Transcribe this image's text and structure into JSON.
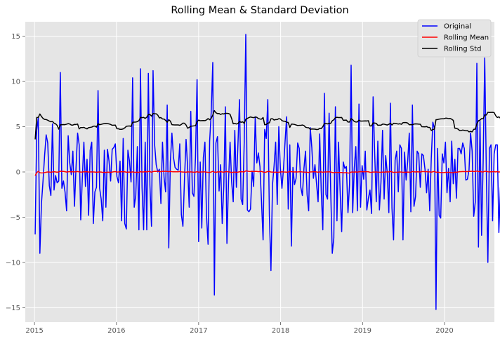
{
  "chart_data": {
    "type": "line",
    "title": "Rolling Mean & Standard Deviation",
    "xlabel": "",
    "ylabel": "",
    "x_axis": "date",
    "xlim": [
      "2014-11-21",
      "2020-08-10"
    ],
    "ylim": [
      -16.6,
      16.6
    ],
    "x_ticks": [
      "2015-01-01",
      "2016-01-01",
      "2017-01-01",
      "2018-01-01",
      "2019-01-01",
      "2020-01-01"
    ],
    "x_tick_labels": [
      "2015",
      "2016",
      "2017",
      "2018",
      "2019",
      "2020"
    ],
    "y_ticks": [
      -15,
      -10,
      -5,
      0,
      5,
      10,
      15
    ],
    "y_tick_labels": [
      "−15",
      "−10",
      "−5",
      "0",
      "5",
      "10",
      "15"
    ],
    "grid": true,
    "legend_position": "top-right",
    "start_date": "2015-01-04",
    "frequency": "weekly",
    "series": [
      {
        "name": "Original",
        "color": "#0000ff",
        "values": [
          -6.9,
          4.6,
          6.0,
          -9.0,
          -3.5,
          -1.0,
          1.8,
          4.1,
          3.2,
          -1.5,
          -2.6,
          5.3,
          -2.0,
          -0.4,
          -1.2,
          -1.0,
          11.0,
          -1.8,
          -1.0,
          -2.2,
          -4.3,
          4.0,
          1.0,
          -0.3,
          2.3,
          -3.8,
          0.5,
          4.3,
          3.0,
          -5.3,
          -0.7,
          3.3,
          -1.6,
          1.4,
          -4.8,
          2.4,
          3.3,
          -5.7,
          -2.2,
          -1.7,
          9.0,
          -1.8,
          -3.0,
          -5.4,
          2.4,
          -3.9,
          2.5,
          1.2,
          -1.0,
          2.5,
          2.7,
          3.1,
          -0.5,
          -1.2,
          1.2,
          -5.4,
          3.7,
          -5.7,
          -6.3,
          2.4,
          1.2,
          -1.1,
          10.4,
          -3.9,
          -2.6,
          2.8,
          -6.4,
          11.4,
          -1.7,
          -6.4,
          3.3,
          -6.4,
          10.9,
          -1.4,
          -6.0,
          11.2,
          3.0,
          0.8,
          0.0,
          0.3,
          -3.5,
          3.3,
          -0.6,
          -2.2,
          7.4,
          -8.4,
          1.1,
          4.3,
          1.6,
          0.5,
          0.3,
          0.2,
          3.1,
          -4.7,
          -6.0,
          -0.8,
          3.6,
          0.5,
          -3.9,
          6.7,
          -2.3,
          -2.7,
          1.7,
          10.2,
          -7.7,
          1.1,
          -6.2,
          1.6,
          3.3,
          -4.8,
          -8.0,
          3.4,
          6.6,
          12.1,
          -13.6,
          3.2,
          3.9,
          -2.1,
          0.8,
          -5.7,
          -1.6,
          7.2,
          -7.9,
          -1.1,
          3.3,
          -1.1,
          -3.3,
          4.6,
          -1.7,
          3.0,
          8.0,
          -3.0,
          -3.6,
          3.3,
          15.2,
          -4.2,
          -4.4,
          -4.1,
          0.1,
          -1.6,
          6.1,
          1.0,
          2.1,
          0.6,
          -3.3,
          -7.5,
          4.7,
          3.7,
          8.0,
          -4.8,
          -10.9,
          -1.4,
          0.7,
          3.3,
          -3.6,
          5.0,
          0.4,
          -1.8,
          0.4,
          3.4,
          6.1,
          -4.1,
          3.0,
          -8.2,
          0.5,
          -1.4,
          -0.7,
          3.2,
          2.6,
          -1.7,
          -2.6,
          0.4,
          2.3,
          -2.5,
          -4.3,
          4.9,
          2.7,
          -0.7,
          0.8,
          -1.3,
          -3.3,
          4.2,
          -2.1,
          -6.4,
          8.7,
          -2.5,
          -3.0,
          6.5,
          -2.0,
          -9.0,
          -7.3,
          7.2,
          -5.4,
          3.3,
          -2.1,
          -6.6,
          1.1,
          0.4,
          0.6,
          -4.5,
          -1.4,
          11.8,
          -4.5,
          0.4,
          2.8,
          -4.3,
          7.5,
          -3.9,
          0.7,
          -0.8,
          2.3,
          -4.2,
          -2.9,
          -2.0,
          -4.6,
          8.3,
          2.0,
          -3.3,
          3.4,
          -4.2,
          -1.1,
          4.6,
          -3.0,
          1.8,
          -0.1,
          -4.5,
          7.6,
          -4.0,
          -7.5,
          1.3,
          2.3,
          -2.2,
          3.0,
          2.6,
          -7.5,
          2.2,
          -0.9,
          1.2,
          4.3,
          -4.4,
          7.4,
          -3.8,
          -2.7,
          2.3,
          2.0,
          -1.7,
          2.0,
          1.8,
          0.3,
          -2.3,
          0.3,
          -4.3,
          1.5,
          5.5,
          4.8,
          -15.2,
          2.6,
          -4.8,
          -5.1,
          2.0,
          1.0,
          3.3,
          -2.3,
          0.4,
          -3.3,
          3.4,
          -1.3,
          1.4,
          -2.9,
          2.6,
          2.6,
          2.0,
          3.2,
          2.6,
          -0.9,
          -0.8,
          0.2,
          4.3,
          2.3,
          -4.9,
          -3.3,
          12.0,
          -8.3,
          5.6,
          -7.0,
          1.1,
          12.6,
          0.2,
          -10.0,
          2.6,
          3.0,
          -5.4,
          2.0,
          3.0,
          3.0,
          -6.7,
          -1.7,
          -5.0,
          1.1,
          -3.7,
          6.6,
          1.3,
          -1.0,
          2.2,
          -5.9,
          3.6,
          2.4,
          -6.3,
          1.5,
          -5.3,
          10.8,
          -2.3,
          5.6,
          -10.4,
          8.0,
          1.1,
          -2.4,
          6.1,
          -14.5,
          5.8,
          0.9,
          3.1,
          -3.9,
          -3.6,
          5.2,
          -0.5,
          4.0,
          2.5,
          3.5,
          -9.4,
          2.1,
          2.6,
          4.2,
          4.8,
          5.4,
          -6.0,
          2.4,
          4.9,
          5.5,
          -2.3,
          11.4,
          5.4,
          3.2,
          4.8,
          -9.6,
          3.7,
          0.5
        ]
      },
      {
        "name": "Rolling Mean",
        "color": "#ff0000",
        "values": []
      },
      {
        "name": "Rolling Std",
        "color": "#000000",
        "values": []
      }
    ]
  }
}
